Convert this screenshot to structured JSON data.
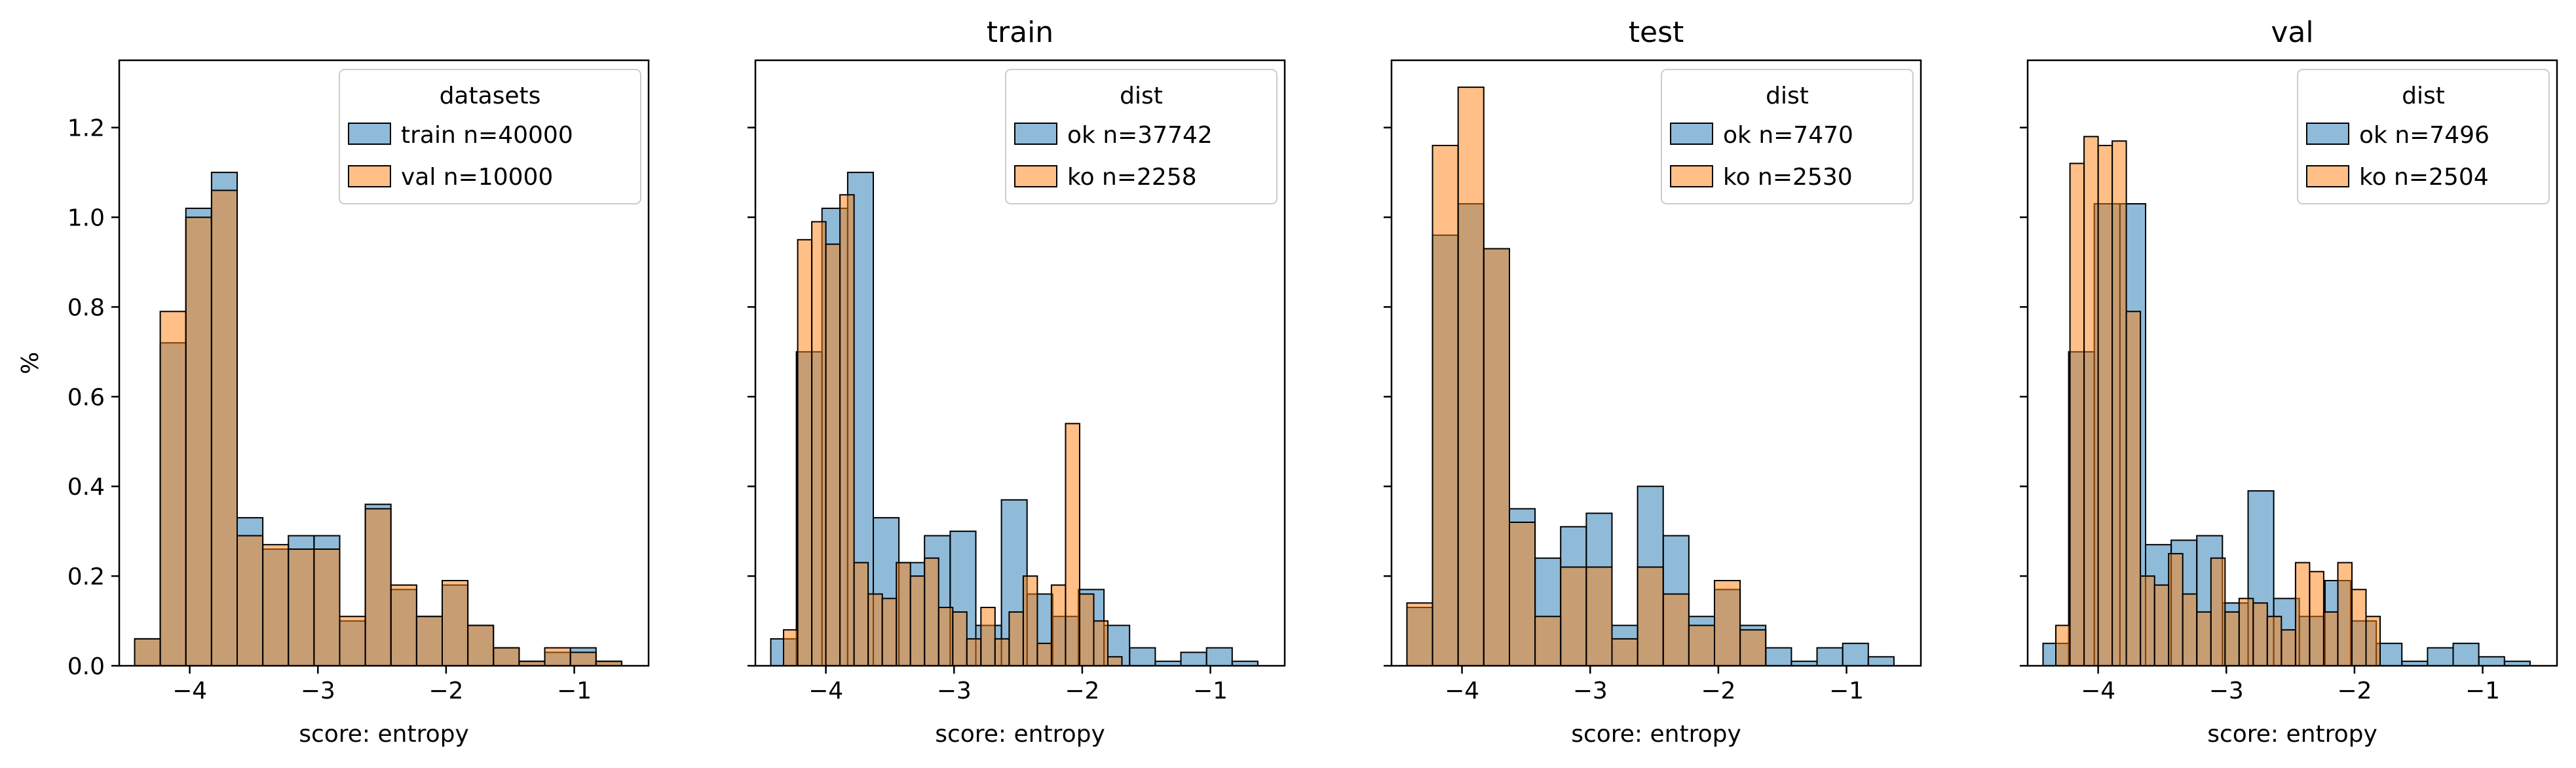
{
  "colors": {
    "series_a": "#1f77b4",
    "series_b": "#ff7f0e",
    "bar_alpha": 0.5,
    "edge": "#000000"
  },
  "chart_data": [
    {
      "type": "bar",
      "title": "",
      "xlabel": "score: entropy",
      "ylabel": "%",
      "xlim": [
        -4.55,
        -0.42
      ],
      "ylim": [
        0,
        1.35
      ],
      "xticks": [
        -4,
        -3,
        -2,
        -1
      ],
      "xtick_labels": [
        "−4",
        "−3",
        "−2",
        "−1"
      ],
      "yticks": [
        0.0,
        0.2,
        0.4,
        0.6,
        0.8,
        1.0,
        1.2
      ],
      "ytick_labels": [
        "0.0",
        "0.2",
        "0.4",
        "0.6",
        "0.8",
        "1.0",
        "1.2"
      ],
      "legend_title": "datasets",
      "legend_position": "top-right",
      "series": [
        {
          "name": "train n=40000",
          "color": "#1f77b4",
          "bin_edges": [
            -4.43,
            -4.23,
            -4.03,
            -3.83,
            -3.63,
            -3.43,
            -3.23,
            -3.03,
            -2.83,
            -2.63,
            -2.43,
            -2.23,
            -2.03,
            -1.83,
            -1.63,
            -1.43,
            -1.23,
            -1.03,
            -0.83,
            -0.63
          ],
          "values": [
            0.06,
            0.72,
            1.02,
            1.1,
            0.33,
            0.26,
            0.29,
            0.29,
            0.1,
            0.36,
            0.17,
            0.11,
            0.18,
            0.09,
            0.04,
            0.01,
            0.03,
            0.04,
            0.01
          ]
        },
        {
          "name": "val n=10000",
          "color": "#ff7f0e",
          "bin_edges": [
            -4.43,
            -4.23,
            -4.03,
            -3.83,
            -3.63,
            -3.43,
            -3.23,
            -3.03,
            -2.83,
            -2.63,
            -2.43,
            -2.23,
            -2.03,
            -1.83,
            -1.63,
            -1.43,
            -1.23,
            -1.03,
            -0.83,
            -0.63
          ],
          "values": [
            0.06,
            0.79,
            1.0,
            1.06,
            0.29,
            0.27,
            0.26,
            0.26,
            0.11,
            0.35,
            0.18,
            0.11,
            0.19,
            0.09,
            0.04,
            0.01,
            0.04,
            0.03,
            0.01
          ]
        }
      ]
    },
    {
      "type": "bar",
      "title": "train",
      "xlabel": "score: entropy",
      "ylabel": "",
      "xlim": [
        -4.55,
        -0.42
      ],
      "ylim": [
        0,
        1.35
      ],
      "xticks": [
        -4,
        -3,
        -2,
        -1
      ],
      "xtick_labels": [
        "−4",
        "−3",
        "−2",
        "−1"
      ],
      "yticks": [
        0.0,
        0.2,
        0.4,
        0.6,
        0.8,
        1.0,
        1.2
      ],
      "ytick_labels": [],
      "legend_title": "dist",
      "legend_position": "top-right",
      "series": [
        {
          "name": "ok n=37742",
          "color": "#1f77b4",
          "bin_edges": [
            -4.43,
            -4.23,
            -4.03,
            -3.83,
            -3.63,
            -3.43,
            -3.23,
            -3.03,
            -2.83,
            -2.63,
            -2.43,
            -2.23,
            -2.03,
            -1.83,
            -1.63,
            -1.43,
            -1.23,
            -1.03,
            -0.83,
            -0.63
          ],
          "values": [
            0.06,
            0.7,
            1.02,
            1.1,
            0.33,
            0.23,
            0.29,
            0.3,
            0.09,
            0.37,
            0.16,
            0.11,
            0.17,
            0.09,
            0.04,
            0.01,
            0.03,
            0.04,
            0.01
          ]
        },
        {
          "name": "ko n=2258",
          "color": "#ff7f0e",
          "bin_edges": [
            -4.33,
            -4.22,
            -4.11,
            -4.0,
            -3.89,
            -3.78,
            -3.67,
            -3.56,
            -3.45,
            -3.34,
            -3.23,
            -3.12,
            -3.01,
            -2.9,
            -2.79,
            -2.68,
            -2.57,
            -2.46,
            -2.35,
            -2.24,
            -2.13,
            -2.02,
            -1.91,
            -1.8,
            -1.69
          ],
          "values": [
            0.08,
            0.95,
            0.99,
            0.94,
            1.05,
            0.23,
            0.16,
            0.15,
            0.23,
            0.2,
            0.24,
            0.13,
            0.12,
            0.06,
            0.13,
            0.06,
            0.12,
            0.2,
            0.05,
            0.18,
            0.54,
            0.16,
            0.1,
            0.02
          ]
        }
      ]
    },
    {
      "type": "bar",
      "title": "test",
      "xlabel": "score: entropy",
      "ylabel": "",
      "xlim": [
        -4.55,
        -0.42
      ],
      "ylim": [
        0,
        1.35
      ],
      "xticks": [
        -4,
        -3,
        -2,
        -1
      ],
      "xtick_labels": [
        "−4",
        "−3",
        "−2",
        "−1"
      ],
      "yticks": [
        0.0,
        0.2,
        0.4,
        0.6,
        0.8,
        1.0,
        1.2
      ],
      "ytick_labels": [],
      "legend_title": "dist",
      "legend_position": "top-right",
      "series": [
        {
          "name": "ok n=7470",
          "color": "#1f77b4",
          "bin_edges": [
            -4.43,
            -4.23,
            -4.03,
            -3.83,
            -3.63,
            -3.43,
            -3.23,
            -3.03,
            -2.83,
            -2.63,
            -2.43,
            -2.23,
            -2.03,
            -1.83,
            -1.63,
            -1.43,
            -1.23,
            -1.03,
            -0.83,
            -0.63
          ],
          "values": [
            0.13,
            0.96,
            1.03,
            0.93,
            0.35,
            0.24,
            0.31,
            0.34,
            0.09,
            0.4,
            0.29,
            0.11,
            0.17,
            0.09,
            0.04,
            0.01,
            0.04,
            0.05,
            0.02
          ]
        },
        {
          "name": "ko n=2530",
          "color": "#ff7f0e",
          "bin_edges": [
            -4.43,
            -4.23,
            -4.03,
            -3.83,
            -3.63,
            -3.43,
            -3.23,
            -3.03,
            -2.83,
            -2.63,
            -2.43,
            -2.23,
            -2.03,
            -1.83,
            -1.63
          ],
          "values": [
            0.14,
            1.16,
            1.29,
            0.93,
            0.32,
            0.11,
            0.22,
            0.22,
            0.06,
            0.22,
            0.16,
            0.09,
            0.19,
            0.08
          ]
        }
      ]
    },
    {
      "type": "bar",
      "title": "val",
      "xlabel": "score: entropy",
      "ylabel": "",
      "xlim": [
        -4.55,
        -0.42
      ],
      "ylim": [
        0,
        1.35
      ],
      "xticks": [
        -4,
        -3,
        -2,
        -1
      ],
      "xtick_labels": [
        "−4",
        "−3",
        "−2",
        "−1"
      ],
      "yticks": [
        0.0,
        0.2,
        0.4,
        0.6,
        0.8,
        1.0,
        1.2
      ],
      "ytick_labels": [],
      "legend_title": "dist",
      "legend_position": "top-right",
      "series": [
        {
          "name": "ok n=7496",
          "color": "#1f77b4",
          "bin_edges": [
            -4.43,
            -4.23,
            -4.03,
            -3.83,
            -3.63,
            -3.43,
            -3.23,
            -3.03,
            -2.83,
            -2.63,
            -2.43,
            -2.23,
            -2.03,
            -1.83,
            -1.63,
            -1.43,
            -1.23,
            -1.03,
            -0.83,
            -0.63
          ],
          "values": [
            0.05,
            0.7,
            1.03,
            1.03,
            0.27,
            0.28,
            0.29,
            0.14,
            0.39,
            0.15,
            0.11,
            0.19,
            0.1,
            0.05,
            0.01,
            0.04,
            0.05,
            0.02,
            0.01
          ]
        },
        {
          "name": "ko n=2504",
          "color": "#ff7f0e",
          "bin_edges": [
            -4.33,
            -4.22,
            -4.11,
            -4.0,
            -3.89,
            -3.78,
            -3.67,
            -3.56,
            -3.45,
            -3.34,
            -3.23,
            -3.12,
            -3.01,
            -2.9,
            -2.79,
            -2.68,
            -2.57,
            -2.46,
            -2.35,
            -2.24,
            -2.13,
            -2.02,
            -1.91,
            -1.8
          ],
          "values": [
            0.09,
            1.12,
            1.18,
            1.16,
            1.17,
            0.79,
            0.2,
            0.18,
            0.25,
            0.16,
            0.12,
            0.24,
            0.12,
            0.15,
            0.14,
            0.11,
            0.08,
            0.23,
            0.21,
            0.12,
            0.23,
            0.17,
            0.11
          ]
        }
      ]
    }
  ]
}
